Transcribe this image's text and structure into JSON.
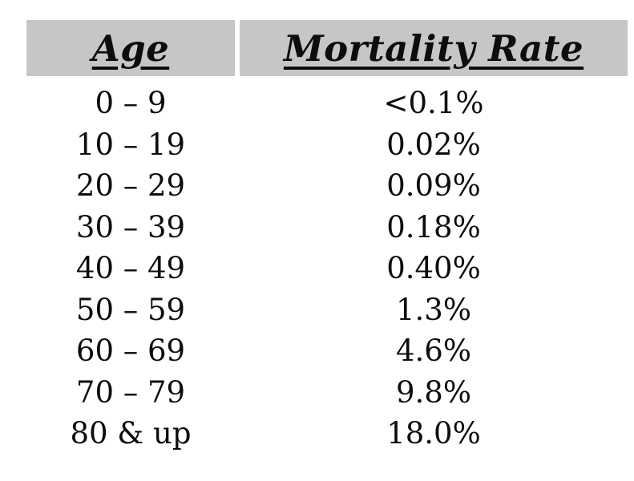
{
  "colors": {
    "background": "#ffffff",
    "header_bg": "#c6c6c6",
    "text": "#0d0d0d"
  },
  "table": {
    "headers": [
      {
        "label": "Age"
      },
      {
        "label": "Mortality Rate"
      }
    ],
    "rows": [
      {
        "age": "0 – 9",
        "rate": "<0.1%"
      },
      {
        "age": "10 – 19",
        "rate": "0.02%"
      },
      {
        "age": "20 – 29",
        "rate": "0.09%"
      },
      {
        "age": "30 – 39",
        "rate": "0.18%"
      },
      {
        "age": "40 – 49",
        "rate": "0.40%"
      },
      {
        "age": "50 – 59",
        "rate": "1.3%"
      },
      {
        "age": "60 – 69",
        "rate": "4.6%"
      },
      {
        "age": "70 – 79",
        "rate": "9.8%"
      },
      {
        "age": "80 & up",
        "rate": "18.0%"
      }
    ]
  },
  "chart_data": {
    "type": "table",
    "columns": [
      "Age",
      "Mortality Rate"
    ],
    "rows": [
      [
        "0 – 9",
        "<0.1%"
      ],
      [
        "10 – 19",
        "0.02%"
      ],
      [
        "20 – 29",
        "0.09%"
      ],
      [
        "30 – 39",
        "0.18%"
      ],
      [
        "40 – 49",
        "0.40%"
      ],
      [
        "50 – 59",
        "1.3%"
      ],
      [
        "60 – 69",
        "4.6%"
      ],
      [
        "70 – 79",
        "9.8%"
      ],
      [
        "80 & up",
        "18.0%"
      ]
    ],
    "notes": "Mortality rate by age group; header cells have gray background with bold italic underlined serif text"
  }
}
